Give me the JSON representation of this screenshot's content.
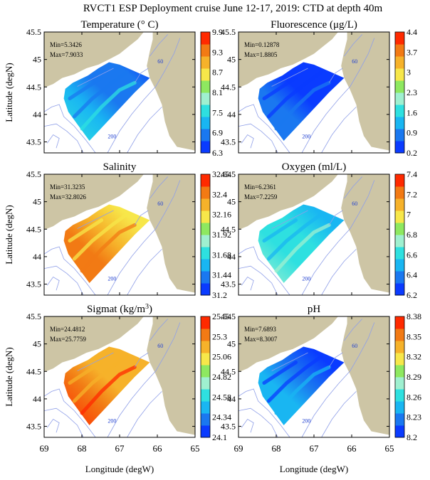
{
  "figure_title": "RVCT1 ESP Deployment cruise June 12-17, 2019: CTD at depth 40m",
  "ylabel": "Latitude (degN)",
  "xlabel": "Longitude (degW)",
  "contour_labels": [
    "60",
    "200"
  ],
  "colors": {
    "land": "#cdc5a5",
    "contour": "#8f9fe8",
    "frame": "#000000"
  },
  "colormap": [
    "#0a3bff",
    "#1a78f0",
    "#19b6f2",
    "#2ee0e0",
    "#9ff0d0",
    "#8ee860",
    "#f7e74a",
    "#f6b22a",
    "#f27a14",
    "#ff2a00"
  ],
  "chart_data": [
    {
      "type": "heatmap",
      "title": "Temperature (° C)",
      "min_label": "Min=5.3426",
      "max_label": "Max=7.9033",
      "colorbar_ticks": [
        "6.3",
        "6.9",
        "7.5",
        "8.1",
        "8.7",
        "9.3",
        "9.9"
      ],
      "fill_level": 0.2,
      "xlim": [
        69,
        65
      ],
      "ylim": [
        43.3,
        45.5
      ],
      "xticks": [
        "69",
        "68",
        "67",
        "66",
        "65"
      ],
      "yticks": [
        "43.5",
        "44",
        "44.5",
        "45",
        "45.5"
      ]
    },
    {
      "type": "heatmap",
      "title": "Fluorescence (μg/L)",
      "min_label": "Min=0.12878",
      "max_label": "Max=1.8805",
      "colorbar_ticks": [
        "0.2",
        "0.9",
        "1.6",
        "2.3",
        "3",
        "3.7",
        "4.4"
      ],
      "fill_level": 0.05,
      "xlim": [
        69,
        65
      ],
      "ylim": [
        43.3,
        45.5
      ],
      "xticks": [
        "69",
        "68",
        "67",
        "66",
        "65"
      ],
      "yticks": [
        "43.5",
        "44",
        "44.5",
        "45",
        "45.5"
      ]
    },
    {
      "type": "heatmap",
      "title": "Salinity",
      "min_label": "Min=31.3235",
      "max_label": "Max=32.8026",
      "colorbar_ticks": [
        "31.2",
        "31.44",
        "31.68",
        "31.92",
        "32.16",
        "32.4",
        "32.64"
      ],
      "fill_level": 0.75,
      "xlim": [
        69,
        65
      ],
      "ylim": [
        43.3,
        45.5
      ],
      "xticks": [
        "69",
        "68",
        "67",
        "66",
        "65"
      ],
      "yticks": [
        "43.5",
        "44",
        "44.5",
        "45",
        "45.5"
      ]
    },
    {
      "type": "heatmap",
      "title": "Oxygen (ml/L)",
      "min_label": "Min=6.2361",
      "max_label": "Max=7.2259",
      "colorbar_ticks": [
        "6.2",
        "6.4",
        "6.6",
        "6.8",
        "7",
        "7.2",
        "7.4"
      ],
      "fill_level": 0.35,
      "xlim": [
        69,
        65
      ],
      "ylim": [
        43.3,
        45.5
      ],
      "xticks": [
        "69",
        "68",
        "67",
        "66",
        "65"
      ],
      "yticks": [
        "43.5",
        "44",
        "44.5",
        "45",
        "45.5"
      ]
    },
    {
      "type": "heatmap",
      "title": "Sigmat (kg/m",
      "title_sup": "3",
      "title_end": ")",
      "min_label": "Min=24.4812",
      "max_label": "Max=25.7759",
      "colorbar_ticks": [
        "24.1",
        "24.34",
        "24.58",
        "24.82",
        "25.06",
        "25.3",
        "25.54"
      ],
      "fill_level": 0.82,
      "xlim": [
        69,
        65
      ],
      "ylim": [
        43.3,
        45.5
      ],
      "xticks": [
        "69",
        "68",
        "67",
        "66",
        "65"
      ],
      "yticks": [
        "43.5",
        "44",
        "44.5",
        "45",
        "45.5"
      ]
    },
    {
      "type": "heatmap",
      "title": "pH",
      "min_label": "Min=7.6893",
      "max_label": "Max=8.3007",
      "colorbar_ticks": [
        "8.2",
        "8.23",
        "8.26",
        "8.29",
        "8.32",
        "8.35",
        "8.38"
      ],
      "fill_level": 0.15,
      "xlim": [
        69,
        65
      ],
      "ylim": [
        43.3,
        45.5
      ],
      "xticks": [
        "69",
        "68",
        "67",
        "66",
        "65"
      ],
      "yticks": [
        "43.5",
        "44",
        "44.5",
        "45",
        "45.5"
      ]
    }
  ]
}
